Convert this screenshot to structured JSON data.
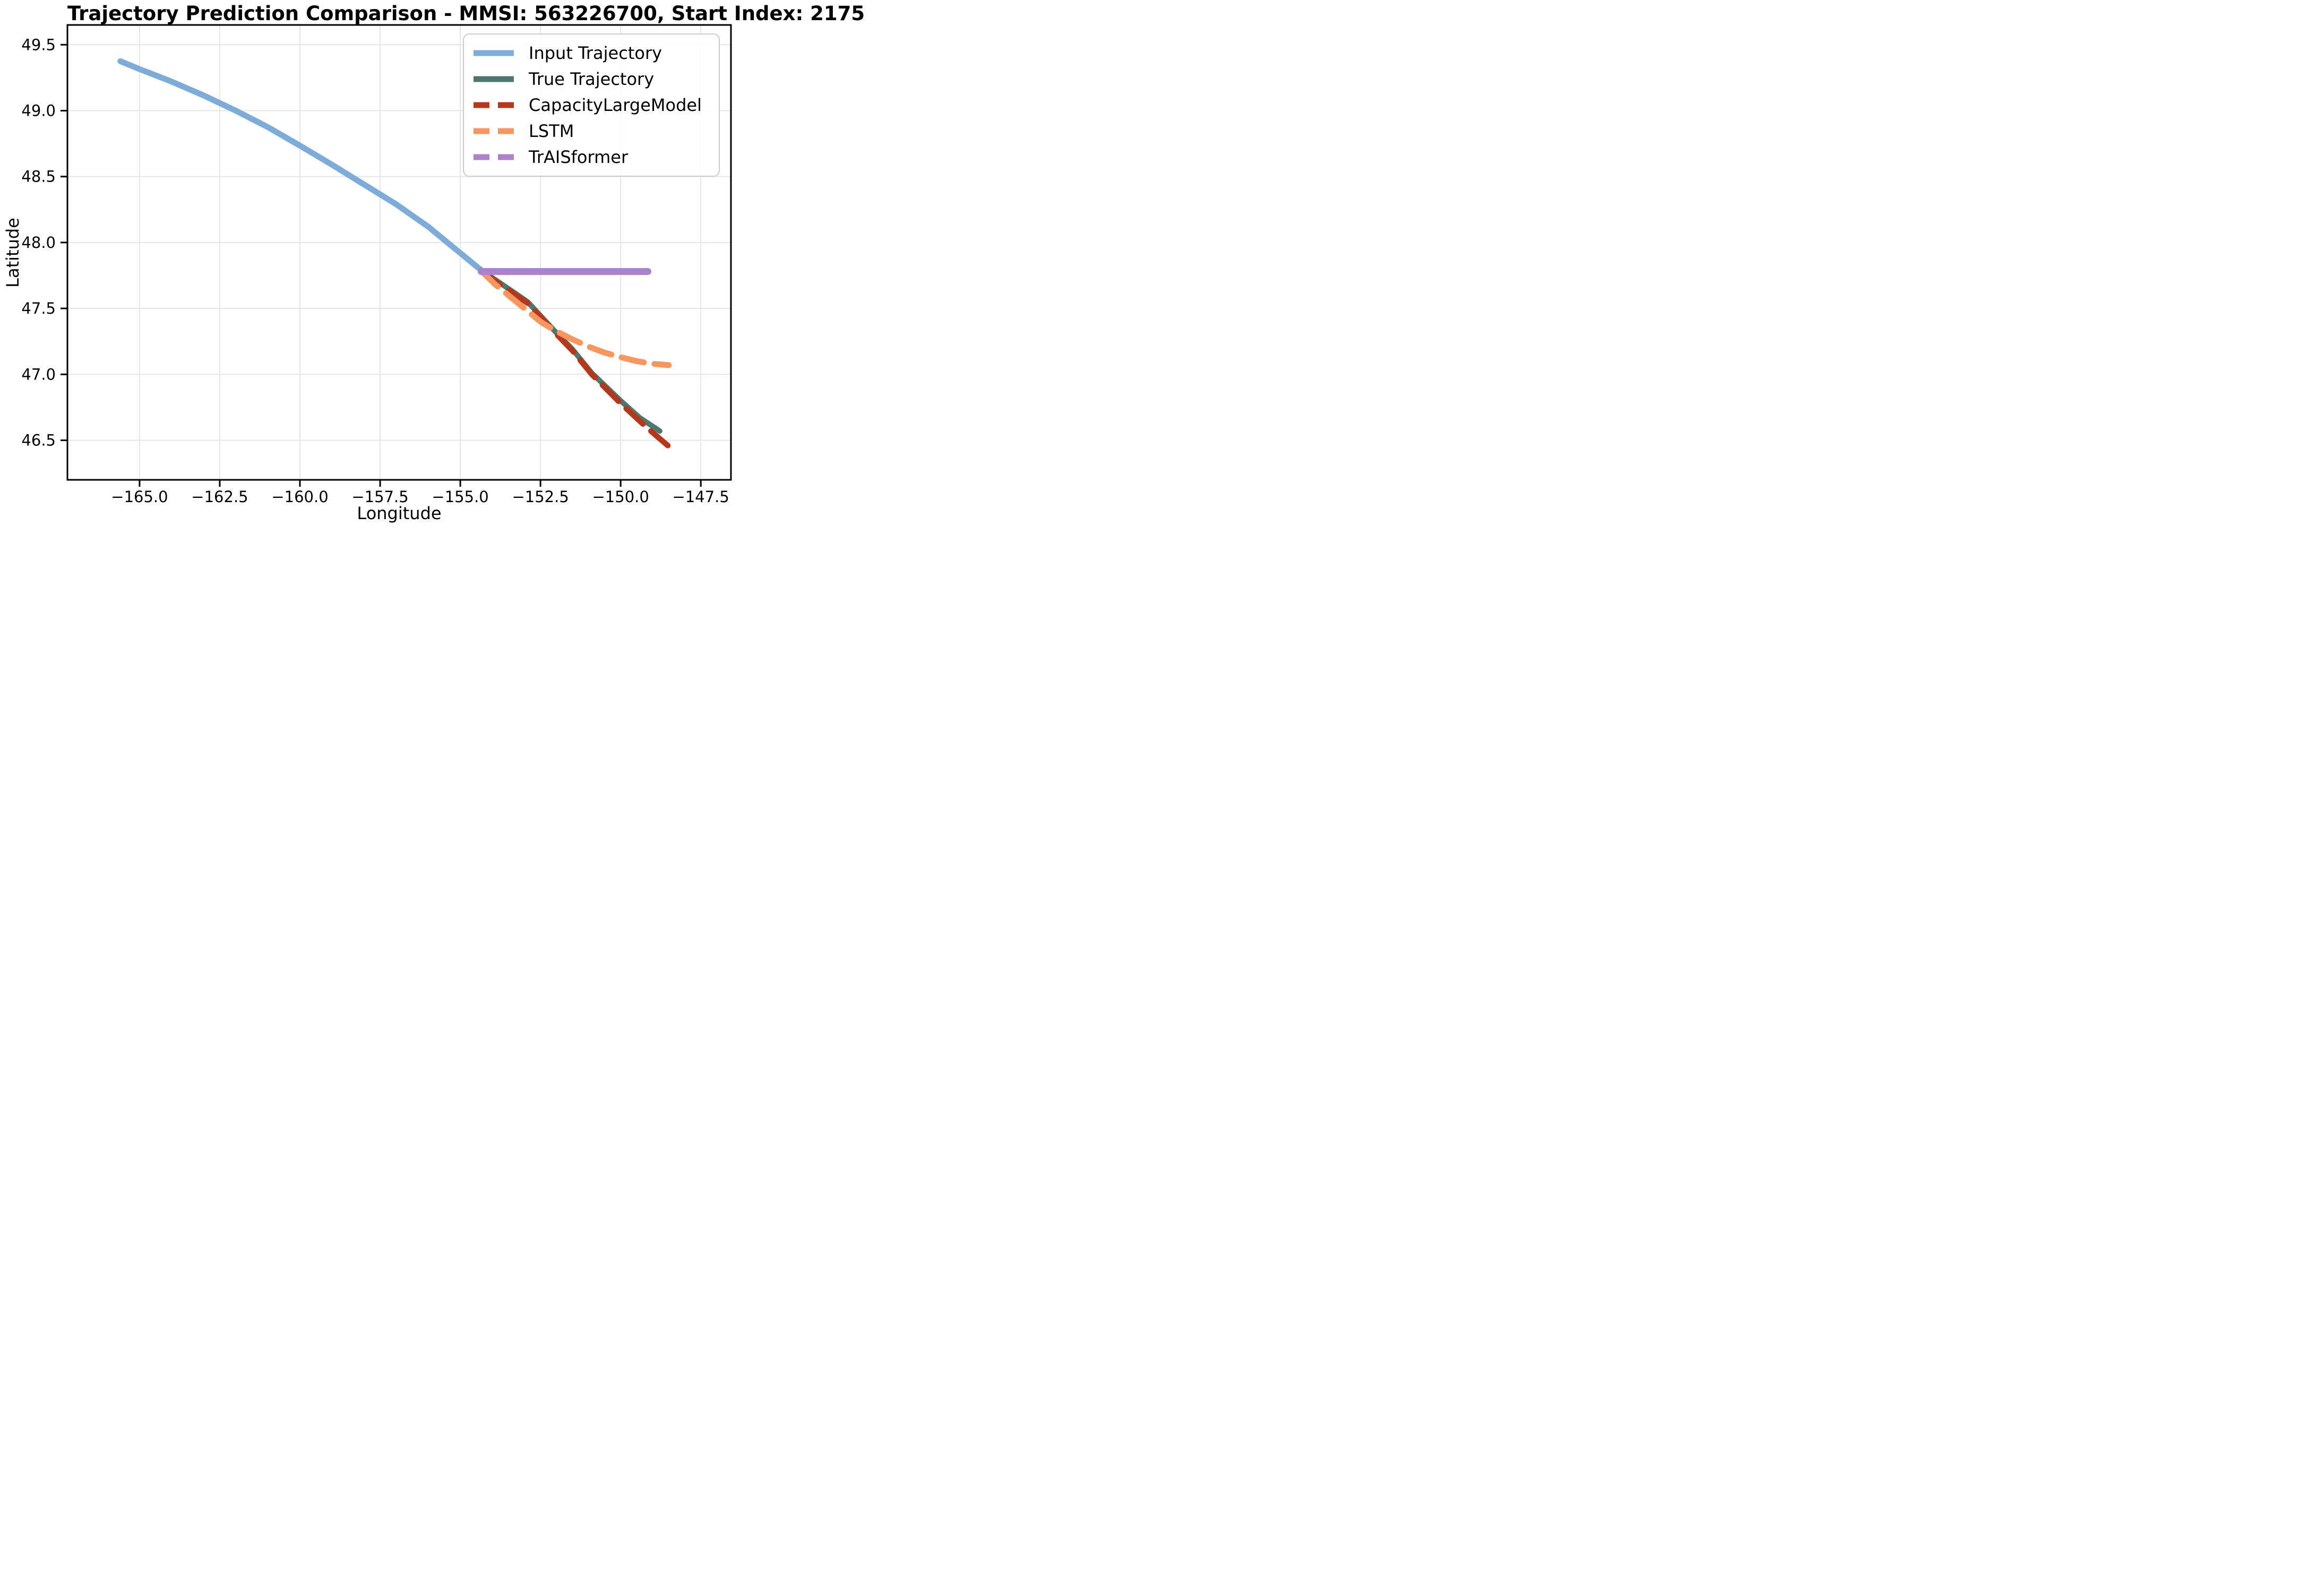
{
  "title": "Trajectory Prediction Comparison - MMSI: 563226700, Start Index: 2175",
  "chart_data": {
    "type": "line",
    "title": "Trajectory Prediction Comparison - MMSI: 563226700, Start Index: 2175",
    "xlabel": "Longitude",
    "ylabel": "Latitude",
    "xlim": [
      -167.25,
      -146.56
    ],
    "ylim": [
      46.2,
      49.65
    ],
    "xticks": [
      -165.0,
      -162.5,
      -160.0,
      -157.5,
      -155.0,
      -152.5,
      -150.0,
      -147.5
    ],
    "yticks": [
      46.5,
      47.0,
      47.5,
      48.0,
      48.5,
      49.0,
      49.5
    ],
    "grid": true,
    "grid_color": "#e6e6e6",
    "background": "#ffffff",
    "legend_position": "upper right",
    "series": [
      {
        "name": "Input Trajectory",
        "color": "#7EACD8",
        "style": "solid",
        "plot_style": "solid",
        "width": 11,
        "points": [
          [
            -165.6,
            49.375
          ],
          [
            -165.0,
            49.315
          ],
          [
            -164.0,
            49.22
          ],
          [
            -163.0,
            49.115
          ],
          [
            -162.0,
            49.0
          ],
          [
            -161.0,
            48.875
          ],
          [
            -160.0,
            48.735
          ],
          [
            -159.0,
            48.59
          ],
          [
            -158.0,
            48.44
          ],
          [
            -157.0,
            48.29
          ],
          [
            -156.0,
            48.12
          ],
          [
            -155.0,
            47.92
          ],
          [
            -154.35,
            47.79
          ]
        ]
      },
      {
        "name": "True Trajectory",
        "color": "#4E786D",
        "style": "solid",
        "plot_style": "solid",
        "width": 10,
        "points": [
          [
            -154.35,
            47.79
          ],
          [
            -153.5,
            47.65
          ],
          [
            -152.9,
            47.55
          ],
          [
            -152.1,
            47.34
          ],
          [
            -151.5,
            47.19
          ],
          [
            -150.9,
            47.01
          ],
          [
            -150.0,
            46.8
          ],
          [
            -149.4,
            46.67
          ],
          [
            -148.78,
            46.57
          ]
        ]
      },
      {
        "name": "CapacityLargeModel",
        "color": "#B5381C",
        "style": "dashed",
        "plot_style": "dashed",
        "width": 10.5,
        "points": [
          [
            -154.35,
            47.78
          ],
          [
            -153.5,
            47.64
          ],
          [
            -152.9,
            47.54
          ],
          [
            -152.1,
            47.33
          ],
          [
            -151.5,
            47.18
          ],
          [
            -150.9,
            47.0
          ],
          [
            -150.0,
            46.78
          ],
          [
            -149.2,
            46.6
          ],
          [
            -148.53,
            46.46
          ]
        ]
      },
      {
        "name": "LSTM",
        "color": "#F8965F",
        "style": "dashed",
        "plot_style": "dashed",
        "width": 11,
        "points": [
          [
            -154.35,
            47.785
          ],
          [
            -153.9,
            47.68
          ],
          [
            -153.5,
            47.6
          ],
          [
            -152.9,
            47.48
          ],
          [
            -152.5,
            47.4
          ],
          [
            -152.1,
            47.34
          ],
          [
            -151.5,
            47.265
          ],
          [
            -151.0,
            47.21
          ],
          [
            -150.5,
            47.165
          ],
          [
            -150.0,
            47.13
          ],
          [
            -149.5,
            47.1
          ],
          [
            -149.0,
            47.08
          ],
          [
            -148.5,
            47.07
          ]
        ]
      },
      {
        "name": "TrAISformer",
        "color": "#AC83CB",
        "style": "dashed",
        "plot_style": "solid",
        "width": 13,
        "points": [
          [
            -154.35,
            47.78
          ],
          [
            -149.15,
            47.78
          ]
        ]
      }
    ]
  }
}
